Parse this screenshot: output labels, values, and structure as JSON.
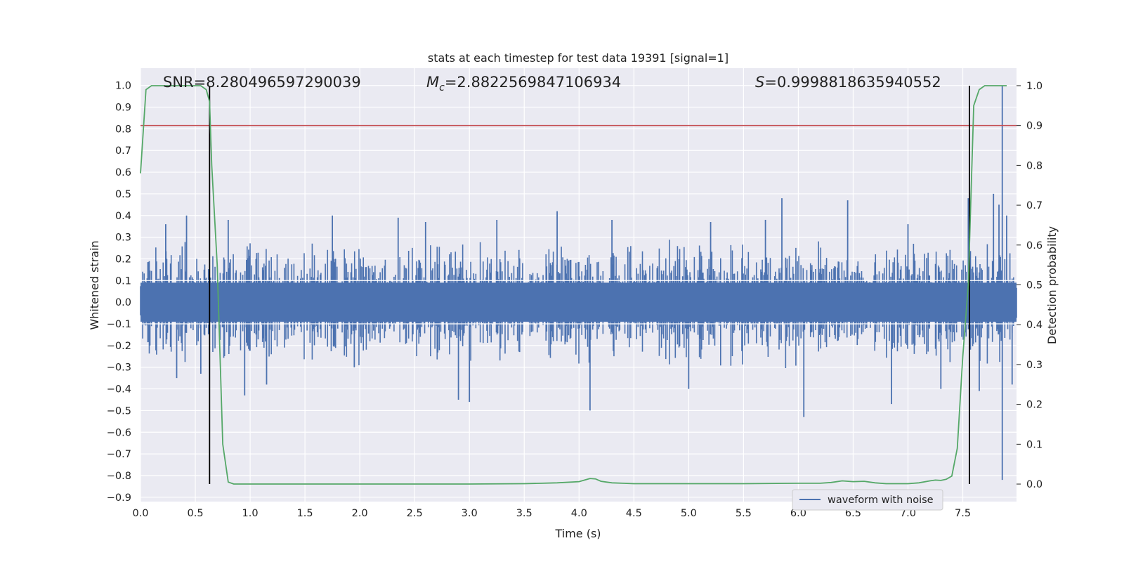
{
  "chart_data": {
    "type": "line",
    "title": "stats at each timestep for test data 19391 [signal=1]",
    "xlabel": "Time (s)",
    "ylabel_left": "Whitened strain",
    "ylabel_right": "Detection probability",
    "xlim": [
      0.0,
      7.99
    ],
    "ylim_left": [
      -0.92,
      1.08
    ],
    "ylim_right": [
      -0.044,
      1.044
    ],
    "x_ticks": [
      "0.0",
      "0.5",
      "1.0",
      "1.5",
      "2.0",
      "2.5",
      "3.0",
      "3.5",
      "4.0",
      "4.5",
      "5.0",
      "5.5",
      "6.0",
      "6.5",
      "7.0",
      "7.5"
    ],
    "y_left_ticks": [
      "1.0",
      "0.9",
      "0.8",
      "0.7",
      "0.6",
      "0.5",
      "0.4",
      "0.3",
      "0.2",
      "0.1",
      "0.0",
      "−0.1",
      "−0.2",
      "−0.3",
      "−0.4",
      "−0.5",
      "−0.6",
      "−0.7",
      "−0.8",
      "−0.9"
    ],
    "y_right_ticks": [
      "1.0",
      "0.9",
      "0.8",
      "0.7",
      "0.6",
      "0.5",
      "0.4",
      "0.3",
      "0.2",
      "0.1",
      "0.0"
    ],
    "grid": true,
    "legend": {
      "position": "lower-right",
      "entries": [
        "waveform with noise"
      ]
    },
    "annotations": {
      "snr": "SNR=8.280496597290039",
      "mc_symbol": "M",
      "mc_sub": "c",
      "mc_value": "=2.8822569847106934",
      "s_symbol": "S",
      "s_value": "=0.9998818635940552"
    },
    "threshold_right": 0.9,
    "vlines_x": [
      0.63,
      7.56
    ],
    "series": [
      {
        "name": "waveform with noise",
        "axis": "left",
        "color": "#4c72b0",
        "description_type": "noisy strain, dense band about ±0.1 with spikes to ~±0.4",
        "x_start": 0.0,
        "x_end": 7.99,
        "band": 0.09,
        "spikes": [
          [
            0.23,
            0.36
          ],
          [
            0.33,
            -0.35
          ],
          [
            0.42,
            0.4
          ],
          [
            0.55,
            -0.33
          ],
          [
            0.8,
            0.38
          ],
          [
            0.95,
            -0.43
          ],
          [
            1.15,
            -0.38
          ],
          [
            1.75,
            0.4
          ],
          [
            1.95,
            -0.3
          ],
          [
            2.35,
            0.39
          ],
          [
            2.6,
            0.37
          ],
          [
            2.9,
            -0.45
          ],
          [
            3.0,
            -0.46
          ],
          [
            3.25,
            0.38
          ],
          [
            3.8,
            0.42
          ],
          [
            4.1,
            -0.5
          ],
          [
            4.3,
            0.38
          ],
          [
            5.0,
            -0.4
          ],
          [
            5.2,
            0.37
          ],
          [
            5.7,
            0.38
          ],
          [
            5.85,
            0.48
          ],
          [
            6.05,
            -0.53
          ],
          [
            6.45,
            0.47
          ],
          [
            6.85,
            -0.47
          ],
          [
            7.0,
            0.36
          ],
          [
            7.3,
            -0.4
          ],
          [
            7.55,
            0.48
          ],
          [
            7.65,
            -0.41
          ],
          [
            7.78,
            0.5
          ],
          [
            7.83,
            0.45
          ],
          [
            7.86,
            1.0
          ],
          [
            7.86,
            -0.82
          ],
          [
            7.9,
            0.4
          ],
          [
            7.95,
            -0.38
          ]
        ]
      },
      {
        "name": "",
        "axis": "right",
        "color": "#55a868",
        "x": [
          0.0,
          0.05,
          0.1,
          0.2,
          0.3,
          0.4,
          0.5,
          0.55,
          0.6,
          0.63,
          0.65,
          0.7,
          0.75,
          0.8,
          0.85,
          0.9,
          1.0,
          1.5,
          2.0,
          2.5,
          3.0,
          3.5,
          3.8,
          4.0,
          4.05,
          4.1,
          4.15,
          4.2,
          4.3,
          4.5,
          5.0,
          5.5,
          6.0,
          6.2,
          6.3,
          6.4,
          6.5,
          6.6,
          6.7,
          6.8,
          7.0,
          7.1,
          7.2,
          7.25,
          7.3,
          7.35,
          7.4,
          7.45,
          7.5,
          7.55,
          7.6,
          7.65,
          7.7,
          7.8,
          7.9
        ],
        "y": [
          0.78,
          0.99,
          1.0,
          1.0,
          1.0,
          1.0,
          1.0,
          1.0,
          0.99,
          0.96,
          0.8,
          0.55,
          0.1,
          0.005,
          0.0,
          0.0,
          0.0,
          0.0,
          0.0,
          0.0,
          0.0,
          0.001,
          0.003,
          0.006,
          0.01,
          0.014,
          0.013,
          0.007,
          0.003,
          0.001,
          0.001,
          0.001,
          0.002,
          0.002,
          0.004,
          0.008,
          0.006,
          0.007,
          0.003,
          0.001,
          0.001,
          0.003,
          0.008,
          0.01,
          0.009,
          0.012,
          0.02,
          0.09,
          0.32,
          0.5,
          0.95,
          0.99,
          1.0,
          1.0,
          1.0
        ]
      }
    ]
  }
}
